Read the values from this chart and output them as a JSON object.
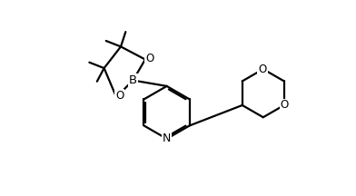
{
  "background": "#ffffff",
  "line_color": "#000000",
  "line_width": 1.6,
  "font_size": 8.5,
  "label_B": "B",
  "label_N": "N",
  "label_O": "O",
  "xlim": [
    -0.5,
    10.5
  ],
  "ylim": [
    0.2,
    5.8
  ]
}
